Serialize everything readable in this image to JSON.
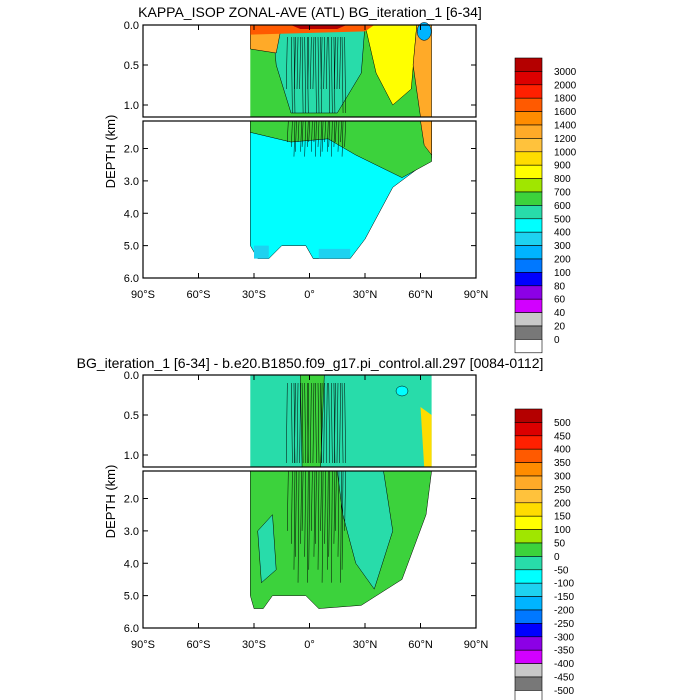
{
  "chart_data": [
    {
      "type": "heatmap",
      "title": "KAPPA_ISOP ZONAL-AVE (ATL) BG_iteration_1 [6-34]",
      "ylabel": "DEPTH (km)",
      "xlabel": "",
      "xlim": [
        -90,
        90
      ],
      "ylim": [
        0,
        6
      ],
      "x_ticks": [
        -90,
        -60,
        -30,
        0,
        30,
        60,
        90
      ],
      "x_tick_labels": [
        "90°S",
        "60°S",
        "30°S",
        "0°",
        "30°N",
        "60°N",
        "90°N"
      ],
      "y_ticks_upper": [
        0.0,
        0.5,
        1.0
      ],
      "y_tick_labels_upper": [
        "0.0",
        "0.5",
        "1.0"
      ],
      "y_ticks_lower": [
        2.0,
        3.0,
        4.0,
        5.0,
        6.0
      ],
      "y_tick_labels_lower": [
        "2.0",
        "3.0",
        "4.0",
        "5.0",
        "6.0"
      ],
      "colorbar_labels": [
        "3000",
        "2000",
        "1800",
        "1600",
        "1400",
        "1200",
        "1000",
        "900",
        "800",
        "700",
        "600",
        "500",
        "400",
        "300",
        "200",
        "100",
        "80",
        "60",
        "40",
        "20",
        "0"
      ],
      "colorbar_colors": [
        "#b40000",
        "#dc0000",
        "#ff2000",
        "#ff5a00",
        "#ff8c00",
        "#ffaa28",
        "#ffc23c",
        "#ffdc00",
        "#ffff00",
        "#a0e600",
        "#3cd23c",
        "#28dcaa",
        "#00ffff",
        "#1ed2f0",
        "#00b4ff",
        "#0078ff",
        "#0000ff",
        "#8c00e6",
        "#d200ff",
        "#c8c8c8",
        "#787878",
        "#ffffff"
      ]
    },
    {
      "type": "heatmap",
      "title": "BG_iteration_1 [6-34] - b.e20.B1850.f09_g17.pi_control.all.297 [0084-0112]",
      "ylabel": "DEPTH (km)",
      "xlabel": "",
      "xlim": [
        -90,
        90
      ],
      "ylim": [
        0,
        6
      ],
      "x_ticks": [
        -90,
        -60,
        -30,
        0,
        30,
        60,
        90
      ],
      "x_tick_labels": [
        "90°S",
        "60°S",
        "30°S",
        "0°",
        "30°N",
        "60°N",
        "90°N"
      ],
      "y_ticks_upper": [
        0.0,
        0.5,
        1.0
      ],
      "y_tick_labels_upper": [
        "0.0",
        "0.5",
        "1.0"
      ],
      "y_ticks_lower": [
        2.0,
        3.0,
        4.0,
        5.0,
        6.0
      ],
      "y_tick_labels_lower": [
        "2.0",
        "3.0",
        "4.0",
        "5.0",
        "6.0"
      ],
      "colorbar_labels": [
        "500",
        "450",
        "400",
        "350",
        "300",
        "250",
        "200",
        "150",
        "100",
        "50",
        "0",
        "-50",
        "-100",
        "-150",
        "-200",
        "-250",
        "-300",
        "-350",
        "-400",
        "-450",
        "-500"
      ],
      "colorbar_colors": [
        "#b40000",
        "#dc0000",
        "#ff2000",
        "#ff5a00",
        "#ff8c00",
        "#ffaa28",
        "#ffc23c",
        "#ffdc00",
        "#ffff00",
        "#a0e600",
        "#3cd23c",
        "#28dcaa",
        "#00ffff",
        "#1ed2f0",
        "#00b4ff",
        "#0078ff",
        "#0000ff",
        "#8c00e6",
        "#d200ff",
        "#c8c8c8",
        "#787878",
        "#ffffff"
      ]
    }
  ]
}
